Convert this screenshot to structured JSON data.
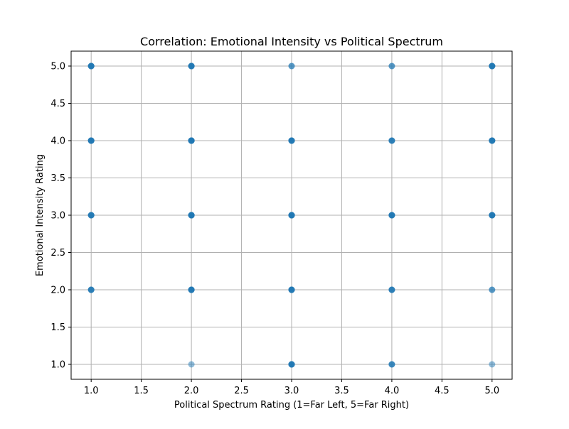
{
  "chart_data": {
    "type": "scatter",
    "title": "Correlation: Emotional Intensity vs Political Spectrum",
    "xlabel": "Political Spectrum Rating (1=Far Left, 5=Far Right)",
    "ylabel": "Emotional Intensity Rating",
    "xlim": [
      0.8,
      5.2
    ],
    "ylim": [
      0.8,
      5.2
    ],
    "xticks": [
      "1.0",
      "1.5",
      "2.0",
      "2.5",
      "3.0",
      "3.5",
      "4.0",
      "4.5",
      "5.0"
    ],
    "yticks": [
      "1.0",
      "1.5",
      "2.0",
      "2.5",
      "3.0",
      "3.5",
      "4.0",
      "4.5",
      "5.0"
    ],
    "grid": true,
    "point_color": "#1f77b4",
    "points": [
      {
        "x": 1,
        "y": 5,
        "count": 6
      },
      {
        "x": 1,
        "y": 4,
        "count": 6
      },
      {
        "x": 1,
        "y": 3,
        "count": 5
      },
      {
        "x": 1,
        "y": 2,
        "count": 4
      },
      {
        "x": 2,
        "y": 5,
        "count": 6
      },
      {
        "x": 2,
        "y": 4,
        "count": 8
      },
      {
        "x": 2,
        "y": 3,
        "count": 8
      },
      {
        "x": 2,
        "y": 2,
        "count": 6
      },
      {
        "x": 2,
        "y": 1,
        "count": 1
      },
      {
        "x": 3,
        "y": 5,
        "count": 2
      },
      {
        "x": 3,
        "y": 4,
        "count": 6
      },
      {
        "x": 3,
        "y": 3,
        "count": 8
      },
      {
        "x": 3,
        "y": 2,
        "count": 6
      },
      {
        "x": 3,
        "y": 1,
        "count": 6
      },
      {
        "x": 4,
        "y": 5,
        "count": 2
      },
      {
        "x": 4,
        "y": 4,
        "count": 4
      },
      {
        "x": 4,
        "y": 3,
        "count": 6
      },
      {
        "x": 4,
        "y": 2,
        "count": 4
      },
      {
        "x": 4,
        "y": 1,
        "count": 3
      },
      {
        "x": 5,
        "y": 5,
        "count": 6
      },
      {
        "x": 5,
        "y": 4,
        "count": 6
      },
      {
        "x": 5,
        "y": 3,
        "count": 6
      },
      {
        "x": 5,
        "y": 2,
        "count": 2
      },
      {
        "x": 5,
        "y": 1,
        "count": 1
      }
    ]
  }
}
